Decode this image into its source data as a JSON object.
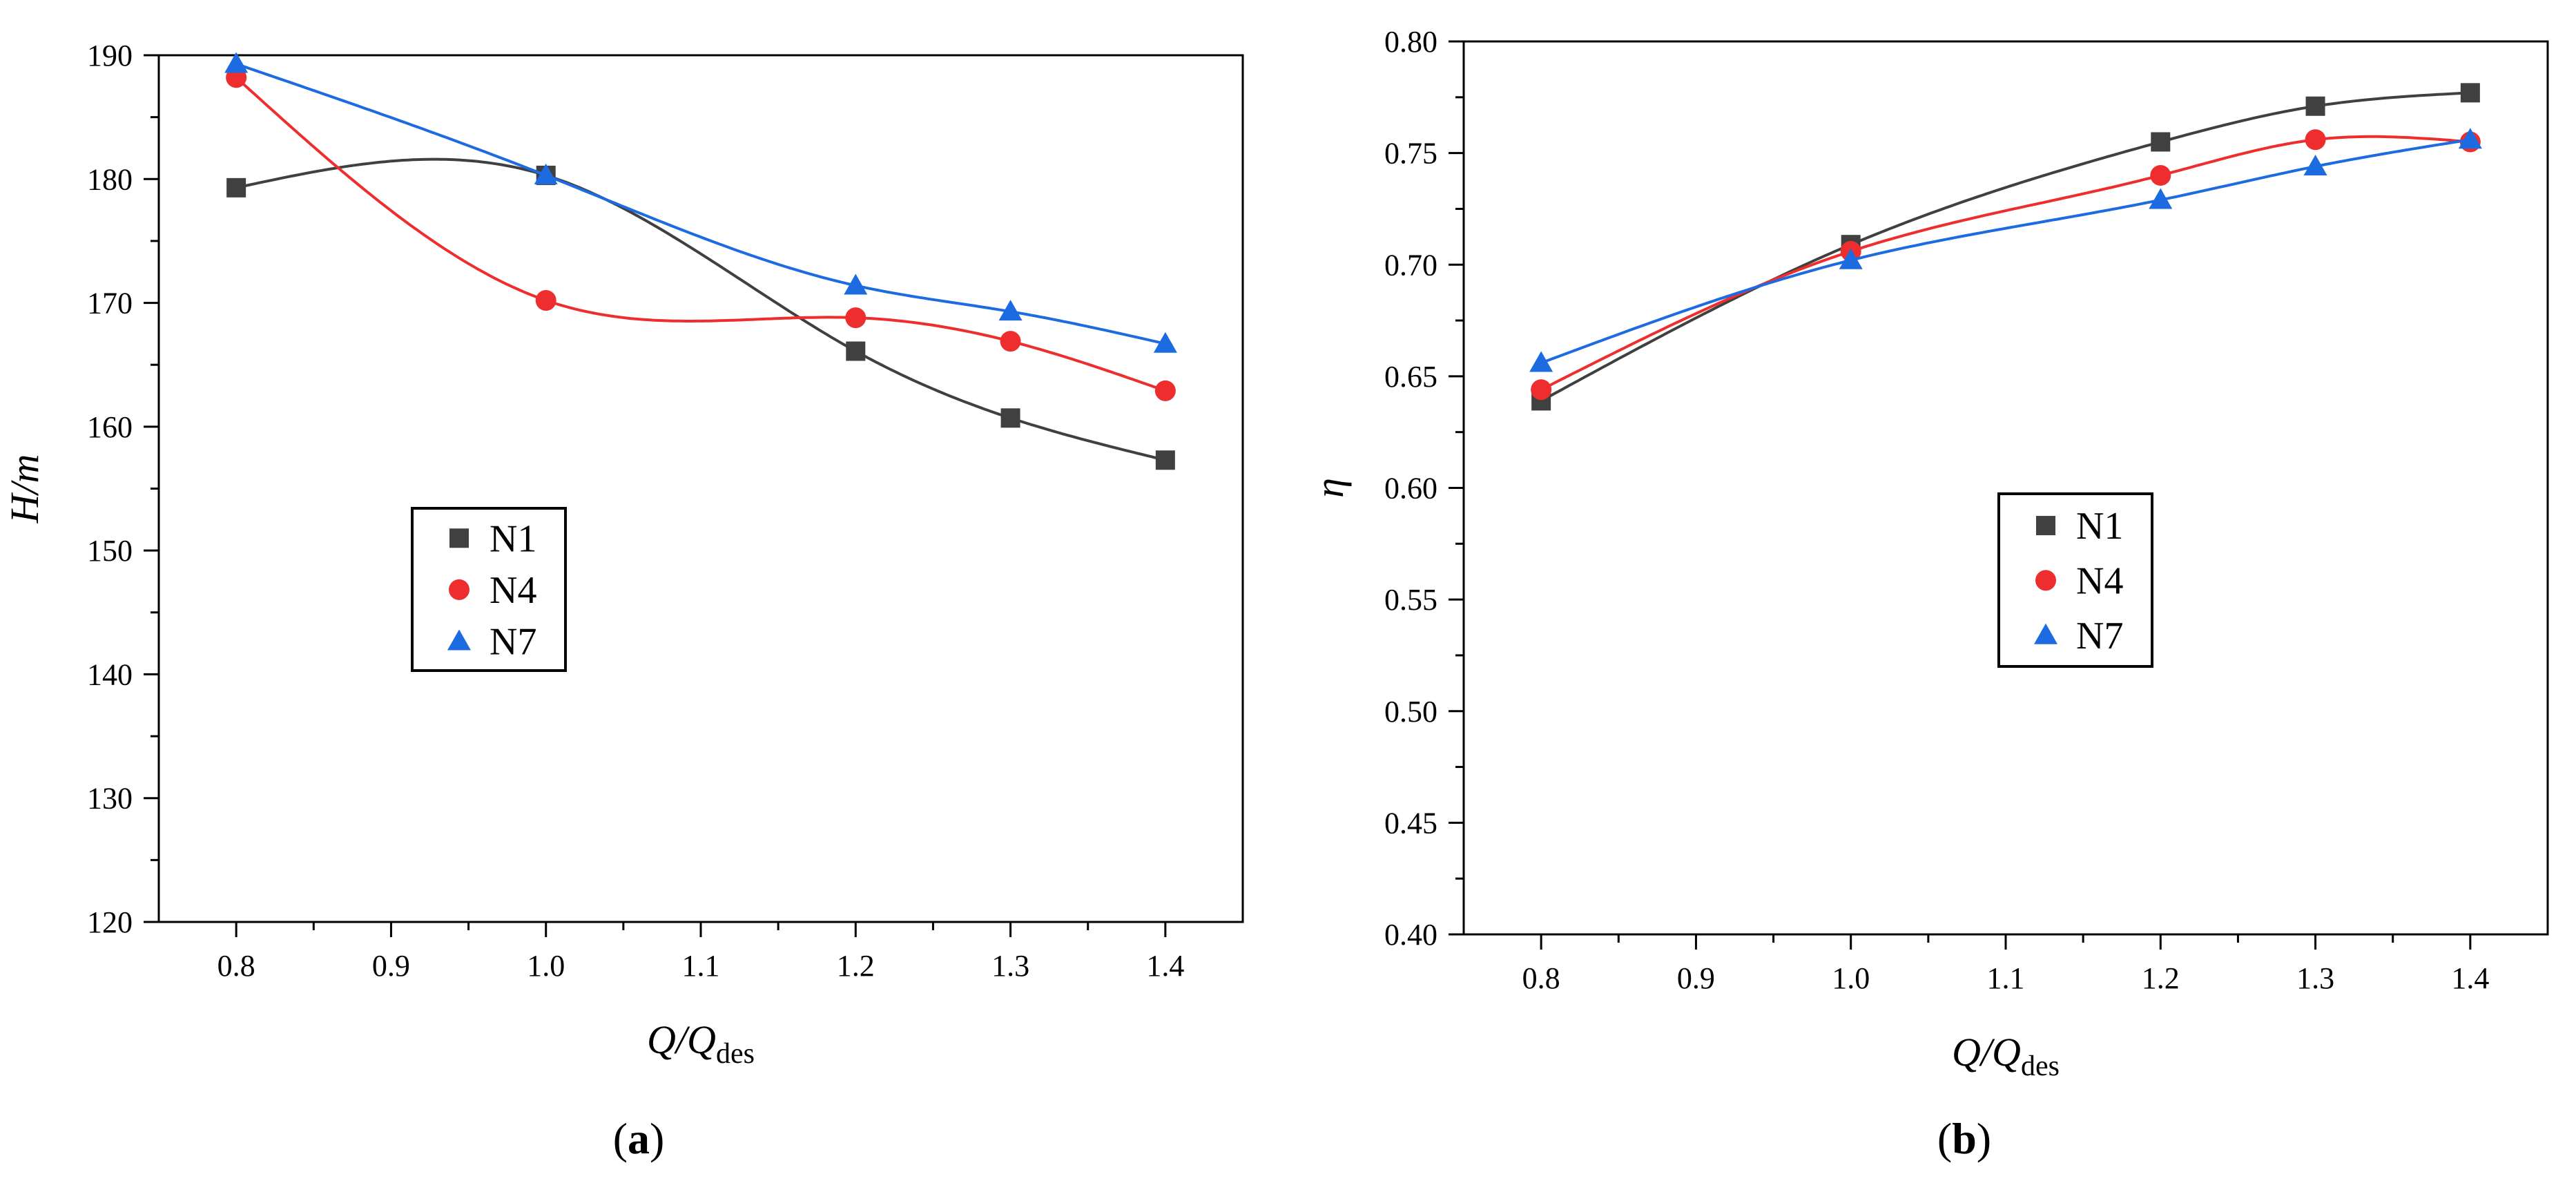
{
  "figure": {
    "panels": [
      "a",
      "b"
    ]
  },
  "colors": {
    "N1": "#404040",
    "N4": "#ee2e2e",
    "N7": "#1c6be0"
  },
  "chart_data": [
    {
      "id": "a",
      "type": "scatter",
      "panel_label": "a",
      "title": "",
      "xlabel": {
        "main": "Q/Q",
        "sub": "des"
      },
      "ylabel": "H/m",
      "xlim": [
        0.75,
        1.45
      ],
      "ylim": [
        120,
        190
      ],
      "xticks": [
        0.8,
        0.9,
        1.0,
        1.1,
        1.2,
        1.3,
        1.4
      ],
      "yticks": [
        120,
        130,
        140,
        150,
        160,
        170,
        180,
        190
      ],
      "x_tick_decimals": 1,
      "y_tick_decimals": 0,
      "legend_position": "middle-left",
      "fit_curves": true,
      "x": [
        0.8,
        1.0,
        1.2,
        1.3,
        1.4
      ],
      "series": [
        {
          "name": "N1",
          "marker": "square",
          "values": [
            179.3,
            180.3,
            166.1,
            160.7,
            157.3
          ]
        },
        {
          "name": "N4",
          "marker": "circle",
          "values": [
            188.2,
            170.2,
            168.8,
            166.9,
            162.9
          ]
        },
        {
          "name": "N7",
          "marker": "triangle",
          "values": [
            189.3,
            180.3,
            171.4,
            169.3,
            166.7
          ]
        }
      ]
    },
    {
      "id": "b",
      "type": "scatter",
      "panel_label": "b",
      "title": "",
      "xlabel": {
        "main": "Q/Q",
        "sub": "des"
      },
      "ylabel": "η",
      "xlim": [
        0.75,
        1.45
      ],
      "ylim": [
        0.4,
        0.8
      ],
      "xticks": [
        0.8,
        0.9,
        1.0,
        1.1,
        1.2,
        1.3,
        1.4
      ],
      "yticks": [
        0.4,
        0.45,
        0.5,
        0.55,
        0.6,
        0.65,
        0.7,
        0.75,
        0.8
      ],
      "x_tick_decimals": 1,
      "y_tick_decimals": 2,
      "legend_position": "center",
      "fit_curves": true,
      "x": [
        0.8,
        1.0,
        1.2,
        1.3,
        1.4
      ],
      "series": [
        {
          "name": "N1",
          "marker": "square",
          "values": [
            0.639,
            0.709,
            0.755,
            0.771,
            0.777
          ]
        },
        {
          "name": "N4",
          "marker": "circle",
          "values": [
            0.644,
            0.706,
            0.74,
            0.756,
            0.755
          ]
        },
        {
          "name": "N7",
          "marker": "triangle",
          "values": [
            0.656,
            0.702,
            0.729,
            0.744,
            0.756
          ]
        }
      ]
    }
  ]
}
